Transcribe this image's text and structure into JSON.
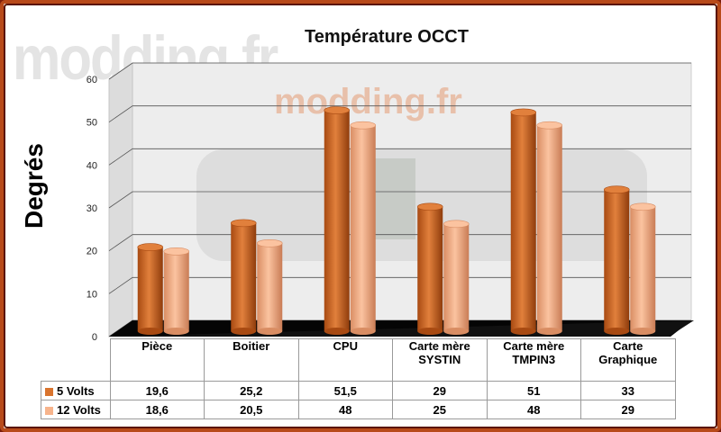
{
  "chart_data": {
    "type": "bar",
    "title": "Température OCCT",
    "ylabel": "Degrés",
    "ylim": [
      0,
      60
    ],
    "yticks": [
      0,
      10,
      20,
      30,
      40,
      50,
      60
    ],
    "categories": [
      "Pièce",
      "Boitier",
      "CPU",
      "Carte mère SYSTIN",
      "Carte mère TMPIN3",
      "Carte Graphique"
    ],
    "category_lines": [
      [
        "Pièce"
      ],
      [
        "Boitier"
      ],
      [
        "CPU"
      ],
      [
        "Carte mère",
        "SYSTIN"
      ],
      [
        "Carte mère",
        "TMPIN3"
      ],
      [
        "Carte",
        "Graphique"
      ]
    ],
    "series": [
      {
        "name": "5 Volts",
        "values": [
          19.6,
          25.2,
          51.5,
          29,
          51,
          33
        ],
        "color": "#d9742e"
      },
      {
        "name": "12 Volts",
        "values": [
          18.6,
          20.5,
          48,
          25,
          48,
          29
        ],
        "color": "#f7b48c"
      }
    ],
    "table_values": [
      [
        "19,6",
        "25,2",
        "51,5",
        "29",
        "51",
        "33"
      ],
      [
        "18,6",
        "20,5",
        "48",
        "25",
        "48",
        "29"
      ]
    ],
    "legend_placement": "data table below chart",
    "grid": true
  },
  "watermark": "modding.fr"
}
